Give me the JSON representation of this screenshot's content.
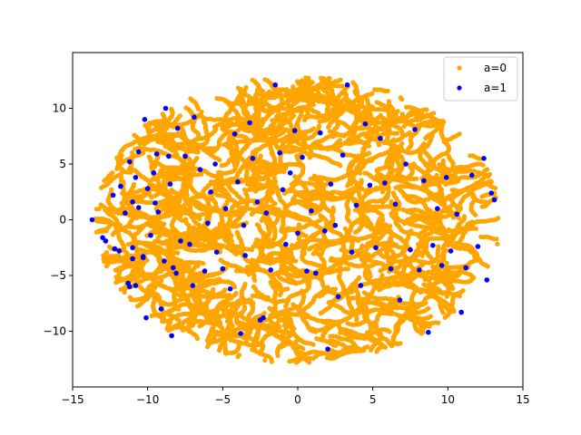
{
  "chart_data": {
    "type": "scatter",
    "title": "",
    "xlabel": "",
    "ylabel": "",
    "xlim": [
      -15,
      15
    ],
    "ylim": [
      -15,
      15
    ],
    "xticks": [
      -15,
      -10,
      -5,
      0,
      5,
      10,
      15
    ],
    "yticks": [
      -10,
      -5,
      0,
      5,
      10
    ],
    "grid": false,
    "legend_position": "top-right",
    "series": [
      {
        "name": "a=0",
        "color": "#ffa500",
        "marker": "circle",
        "distribution": "dense roughly elliptical cloud spanning x approx -13 to 13.5 and y approx -13 to 12.8",
        "approx_points": 9000
      },
      {
        "name": "a=1",
        "color": "#0000ff",
        "marker": "circle",
        "points": [
          [
            -13.7,
            0.0
          ],
          [
            -13.0,
            -1.6
          ],
          [
            -12.8,
            -1.9
          ],
          [
            -12.3,
            2.2
          ],
          [
            -12.2,
            -2.6
          ],
          [
            -11.9,
            -2.8
          ],
          [
            -11.8,
            3.0
          ],
          [
            -11.5,
            0.6
          ],
          [
            -11.3,
            -5.7
          ],
          [
            -11.2,
            -6.0
          ],
          [
            -11.2,
            5.2
          ],
          [
            -11.0,
            1.6
          ],
          [
            -11.0,
            -2.5
          ],
          [
            -11.0,
            -3.5
          ],
          [
            -10.8,
            -5.9
          ],
          [
            -10.8,
            3.8
          ],
          [
            -10.6,
            6.1
          ],
          [
            -10.6,
            1.1
          ],
          [
            -10.3,
            -3.4
          ],
          [
            -10.3,
            -3.3
          ],
          [
            -10.2,
            9.0
          ],
          [
            -10.1,
            -8.8
          ],
          [
            -10.0,
            2.8
          ],
          [
            -9.8,
            -1.4
          ],
          [
            -9.6,
            4.2
          ],
          [
            -9.5,
            1.5
          ],
          [
            -9.4,
            5.9
          ],
          [
            -9.3,
            0.7
          ],
          [
            -9.1,
            -8.0
          ],
          [
            -8.9,
            -3.7
          ],
          [
            -8.8,
            10.0
          ],
          [
            -8.6,
            5.7
          ],
          [
            -8.5,
            3.2
          ],
          [
            -8.4,
            -10.4
          ],
          [
            -8.3,
            -4.3
          ],
          [
            -8.1,
            -4.8
          ],
          [
            -8.0,
            8.2
          ],
          [
            -7.8,
            -1.9
          ],
          [
            -7.5,
            5.7
          ],
          [
            -7.2,
            -2.2
          ],
          [
            -7.0,
            -5.9
          ],
          [
            -6.9,
            9.2
          ],
          [
            -6.5,
            4.5
          ],
          [
            -6.2,
            -4.6
          ],
          [
            -6.0,
            -0.3
          ],
          [
            -5.8,
            2.5
          ],
          [
            -5.5,
            5.0
          ],
          [
            -5.4,
            -2.9
          ],
          [
            -5.0,
            -4.4
          ],
          [
            -4.8,
            1.0
          ],
          [
            -4.5,
            -6.2
          ],
          [
            -4.2,
            7.7
          ],
          [
            -4.0,
            3.4
          ],
          [
            -3.8,
            -10.2
          ],
          [
            -3.6,
            -0.5
          ],
          [
            -3.5,
            -3.2
          ],
          [
            -3.2,
            8.7
          ],
          [
            -3.0,
            5.5
          ],
          [
            -2.7,
            1.6
          ],
          [
            -2.5,
            -9.0
          ],
          [
            -2.3,
            -8.8
          ],
          [
            -2.1,
            0.6
          ],
          [
            -1.8,
            -4.5
          ],
          [
            -1.5,
            12.1
          ],
          [
            -1.2,
            6.0
          ],
          [
            -1.0,
            2.7
          ],
          [
            -0.8,
            -2.2
          ],
          [
            -0.5,
            4.2
          ],
          [
            -0.2,
            8.0
          ],
          [
            0.0,
            -1.2
          ],
          [
            0.3,
            5.6
          ],
          [
            0.6,
            -4.6
          ],
          [
            0.9,
            0.8
          ],
          [
            1.2,
            -4.8
          ],
          [
            1.5,
            7.8
          ],
          [
            1.8,
            -1.0
          ],
          [
            2.0,
            -11.6
          ],
          [
            2.2,
            3.2
          ],
          [
            2.5,
            -0.5
          ],
          [
            2.7,
            -6.9
          ],
          [
            3.0,
            5.8
          ],
          [
            3.3,
            12.1
          ],
          [
            3.6,
            -2.9
          ],
          [
            3.9,
            1.3
          ],
          [
            4.2,
            -5.9
          ],
          [
            4.5,
            8.6
          ],
          [
            4.8,
            3.1
          ],
          [
            5.2,
            -2.5
          ],
          [
            5.5,
            7.3
          ],
          [
            5.8,
            3.3
          ],
          [
            6.2,
            -4.4
          ],
          [
            6.5,
            1.4
          ],
          [
            6.8,
            -7.2
          ],
          [
            7.2,
            5.0
          ],
          [
            7.5,
            -2.7
          ],
          [
            7.8,
            8.1
          ],
          [
            8.1,
            -4.5
          ],
          [
            8.4,
            3.5
          ],
          [
            8.7,
            -10.1
          ],
          [
            9.0,
            -2.3
          ],
          [
            9.3,
            1.0
          ],
          [
            9.6,
            -4.1
          ],
          [
            9.9,
            3.8
          ],
          [
            10.2,
            -2.8
          ],
          [
            10.6,
            0.5
          ],
          [
            10.9,
            -8.3
          ],
          [
            11.2,
            -4.3
          ],
          [
            11.6,
            4.0
          ],
          [
            12.0,
            -2.4
          ],
          [
            12.4,
            5.5
          ],
          [
            12.6,
            -5.4
          ],
          [
            12.9,
            2.4
          ],
          [
            13.1,
            1.8
          ]
        ]
      }
    ]
  }
}
